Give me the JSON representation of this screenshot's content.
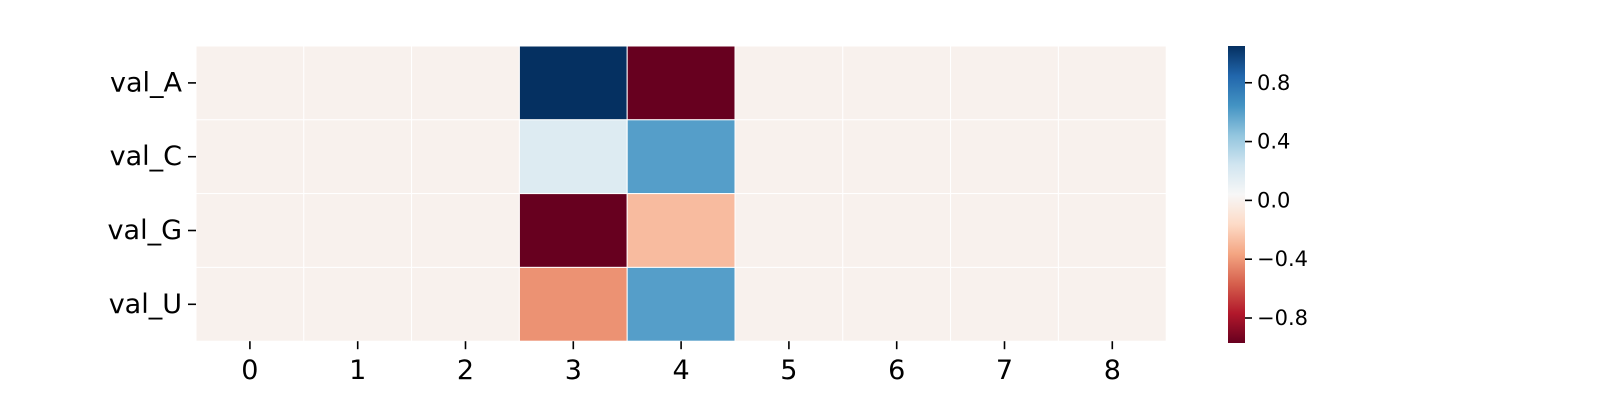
{
  "chart_data": {
    "type": "heatmap",
    "title": "",
    "xlabel": "",
    "ylabel": "",
    "x_categories": [
      "0",
      "1",
      "2",
      "3",
      "4",
      "5",
      "6",
      "7",
      "8"
    ],
    "y_categories": [
      "val_A",
      "val_C",
      "val_G",
      "val_U"
    ],
    "values": [
      [
        0,
        0,
        0,
        1.05,
        -0.97,
        0,
        0,
        0,
        0
      ],
      [
        0,
        0,
        0,
        0.18,
        0.6,
        0,
        0,
        0,
        0
      ],
      [
        0,
        0,
        0,
        -0.97,
        -0.28,
        0,
        0,
        0,
        0
      ],
      [
        0,
        0,
        0,
        -0.42,
        0.6,
        0,
        0,
        0,
        0
      ]
    ],
    "colormap": "RdBu",
    "color_range": [
      -0.97,
      1.05
    ],
    "colorbar": {
      "ticks": [
        0.8,
        0.4,
        0.0,
        -0.4,
        -0.8
      ],
      "tick_labels": [
        "0.8",
        "0.4",
        "0.0",
        "−0.4",
        "−0.8"
      ]
    },
    "grid": false,
    "cell_lines": true,
    "legend": "colorbar-right"
  }
}
